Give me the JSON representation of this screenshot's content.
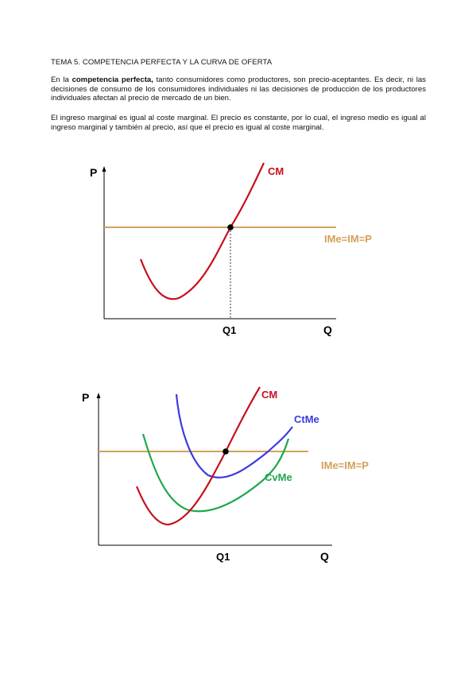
{
  "document": {
    "heading": "TEMA 5. COMPETENCIA PERFECTA Y LA CURVA DE OFERTA",
    "paragraph1": {
      "intro": "En la ",
      "bold": "competencia perfecta,",
      "rest": " tanto consumidores como productores, son precio-aceptantes. Es decir, ni las decisiones de consumo de los consumidores individuales ni las decisiones de producción de los productores individuales afectan al precio de mercado de un bien."
    },
    "paragraph2": "El ingreso marginal es igual al coste marginal. El precio es constante, por lo cual, el ingreso medio es igual al ingreso marginal y también al precio, así que el precio es igual al coste marginal."
  },
  "figure1": {
    "y_axis": "P",
    "x_axis": "Q",
    "x_tick": "Q1",
    "curves": [
      {
        "name": "CM",
        "color": "#c8101e"
      },
      {
        "name": "IMe=IM=P",
        "color": "#d4a05a"
      }
    ]
  },
  "figure2": {
    "y_axis": "P",
    "x_axis": "Q",
    "x_tick": "Q1",
    "curves": [
      {
        "name": "CM",
        "color": "#c8101e"
      },
      {
        "name": "CtMe",
        "color": "#3b3be0"
      },
      {
        "name": "CvMe",
        "color": "#1ea84a"
      },
      {
        "name": "IMe=IM=P",
        "color": "#d4a05a"
      }
    ]
  }
}
